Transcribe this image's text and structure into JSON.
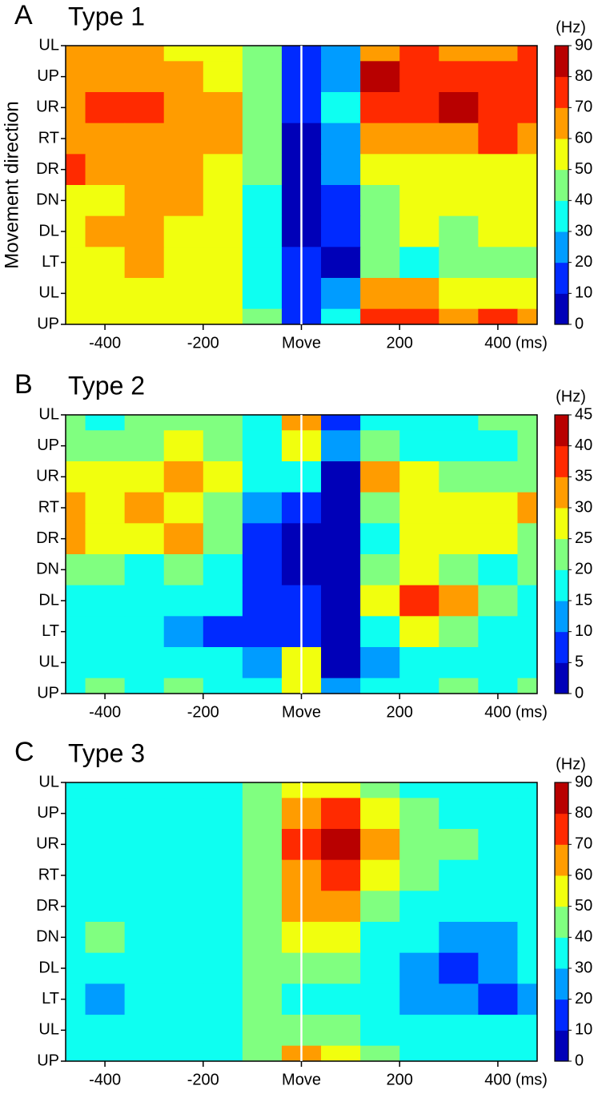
{
  "chart_data": [
    {
      "type": "heatmap",
      "panel": "A",
      "title": "Type 1",
      "ylabel": "Movement direction",
      "categories": [
        "UL",
        "UP",
        "UR",
        "RT",
        "DR",
        "DN",
        "DL",
        "LT",
        "UL",
        "UP"
      ],
      "x": [
        -480,
        -400,
        -320,
        -240,
        -160,
        -80,
        0,
        80,
        160,
        240,
        320,
        400,
        480
      ],
      "xlim": [
        -480,
        480
      ],
      "xticks": [
        -400,
        -200,
        {
          "value": 0,
          "label": "Move"
        },
        200,
        400
      ],
      "x_unit": "(ms)",
      "zlim": [
        0,
        90
      ],
      "zticks": [
        0,
        10,
        20,
        30,
        40,
        50,
        60,
        70,
        80,
        90
      ],
      "z_unit": "(Hz)",
      "colormap": "jet",
      "z": [
        [
          60,
          60,
          62,
          55,
          55,
          40,
          15,
          20,
          60,
          70,
          68,
          68,
          70
        ],
        [
          62,
          65,
          65,
          60,
          58,
          40,
          12,
          25,
          80,
          75,
          75,
          75,
          72
        ],
        [
          65,
          70,
          70,
          65,
          62,
          40,
          10,
          30,
          78,
          70,
          80,
          78,
          72
        ],
        [
          68,
          68,
          68,
          62,
          65,
          40,
          8,
          25,
          65,
          62,
          65,
          70,
          68
        ],
        [
          70,
          62,
          60,
          62,
          55,
          40,
          5,
          20,
          55,
          55,
          58,
          55,
          55
        ],
        [
          55,
          58,
          60,
          60,
          50,
          35,
          5,
          15,
          45,
          55,
          55,
          50,
          55
        ],
        [
          50,
          65,
          60,
          58,
          50,
          30,
          8,
          12,
          40,
          50,
          45,
          55,
          50
        ],
        [
          55,
          55,
          62,
          55,
          50,
          30,
          10,
          8,
          40,
          35,
          42,
          40,
          45
        ],
        [
          55,
          50,
          50,
          55,
          52,
          35,
          10,
          20,
          60,
          60,
          55,
          58,
          55
        ],
        [
          58,
          55,
          55,
          55,
          55,
          40,
          15,
          30,
          78,
          70,
          65,
          70,
          60
        ]
      ]
    },
    {
      "type": "heatmap",
      "panel": "B",
      "title": "Type 2",
      "categories": [
        "UL",
        "UP",
        "UR",
        "RT",
        "DR",
        "DN",
        "DL",
        "LT",
        "UL",
        "UP"
      ],
      "x": [
        -480,
        -400,
        -320,
        -240,
        -160,
        -80,
        0,
        80,
        160,
        240,
        320,
        400,
        480
      ],
      "xlim": [
        -480,
        480
      ],
      "xticks": [
        -400,
        -200,
        {
          "value": 0,
          "label": "Move"
        },
        200,
        400
      ],
      "x_unit": "(ms)",
      "zlim": [
        0,
        45
      ],
      "zticks": [
        0,
        5,
        10,
        15,
        20,
        25,
        30,
        35,
        40,
        45
      ],
      "z_unit": "(Hz)",
      "colormap": "jet",
      "z": [
        [
          20,
          18,
          22,
          20,
          22,
          18,
          30,
          5,
          18,
          18,
          15,
          20,
          20
        ],
        [
          22,
          22,
          20,
          25,
          22,
          18,
          28,
          10,
          20,
          15,
          18,
          15,
          20
        ],
        [
          25,
          28,
          25,
          30,
          25,
          15,
          15,
          2,
          33,
          25,
          22,
          20,
          22
        ],
        [
          30,
          25,
          30,
          25,
          22,
          10,
          5,
          1,
          20,
          28,
          28,
          28,
          30
        ],
        [
          30,
          25,
          25,
          30,
          22,
          8,
          2,
          1,
          15,
          28,
          25,
          25,
          22
        ],
        [
          22,
          20,
          18,
          20,
          18,
          8,
          3,
          2,
          20,
          25,
          20,
          18,
          20
        ],
        [
          15,
          18,
          15,
          15,
          15,
          5,
          5,
          2,
          25,
          35,
          30,
          20,
          18
        ],
        [
          15,
          15,
          15,
          12,
          8,
          5,
          8,
          2,
          18,
          25,
          20,
          15,
          18
        ],
        [
          15,
          15,
          15,
          15,
          15,
          12,
          25,
          3,
          12,
          15,
          15,
          18,
          18
        ],
        [
          18,
          20,
          18,
          20,
          18,
          15,
          25,
          10,
          15,
          18,
          20,
          18,
          20
        ]
      ]
    },
    {
      "type": "heatmap",
      "panel": "C",
      "title": "Type 3",
      "categories": [
        "UL",
        "UP",
        "UR",
        "RT",
        "DR",
        "DN",
        "DL",
        "LT",
        "UL",
        "UP"
      ],
      "x": [
        -480,
        -400,
        -320,
        -240,
        -160,
        -80,
        0,
        80,
        160,
        240,
        320,
        400,
        480
      ],
      "xlim": [
        -480,
        480
      ],
      "xticks": [
        -400,
        -200,
        {
          "value": 0,
          "label": "Move"
        },
        200,
        400
      ],
      "x_unit": "(ms)",
      "zlim": [
        0,
        90
      ],
      "zticks": [
        0,
        10,
        20,
        30,
        40,
        50,
        60,
        70,
        80,
        90
      ],
      "z_unit": "(Hz)",
      "colormap": "jet",
      "z": [
        [
          35,
          35,
          35,
          35,
          35,
          40,
          55,
          50,
          40,
          35,
          35,
          30,
          30
        ],
        [
          35,
          30,
          35,
          35,
          35,
          40,
          65,
          70,
          55,
          40,
          35,
          35,
          30
        ],
        [
          35,
          35,
          30,
          38,
          35,
          45,
          70,
          80,
          65,
          45,
          40,
          35,
          30
        ],
        [
          30,
          35,
          35,
          30,
          30,
          45,
          65,
          75,
          55,
          40,
          35,
          35,
          30
        ],
        [
          30,
          35,
          35,
          30,
          30,
          45,
          60,
          60,
          45,
          30,
          30,
          30,
          30
        ],
        [
          35,
          40,
          35,
          35,
          35,
          45,
          55,
          50,
          35,
          30,
          25,
          25,
          30
        ],
        [
          30,
          35,
          30,
          30,
          35,
          40,
          45,
          40,
          35,
          25,
          15,
          25,
          30
        ],
        [
          30,
          25,
          35,
          35,
          35,
          40,
          35,
          30,
          35,
          25,
          25,
          15,
          25
        ],
        [
          35,
          35,
          35,
          30,
          35,
          40,
          45,
          45,
          35,
          35,
          30,
          30,
          30
        ],
        [
          35,
          35,
          35,
          35,
          35,
          40,
          60,
          55,
          40,
          35,
          35,
          35,
          30
        ]
      ]
    }
  ]
}
